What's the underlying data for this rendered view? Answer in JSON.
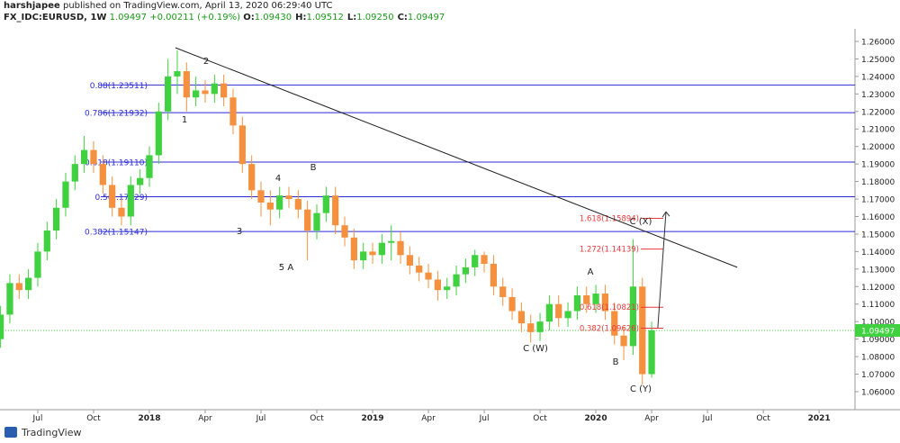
{
  "header": {
    "author": "harshjapee",
    "published": "published on TradingView.com, April 13, 2020 06:29:40 UTC",
    "symbol": "FX_IDC:EURUSD, 1W",
    "price": "1.09497",
    "change": "+0.00211 (+0.19%)",
    "ohlc": [
      {
        "key": "O:",
        "value": "1.09430"
      },
      {
        "key": "H:",
        "value": "1.09512"
      },
      {
        "key": "L:",
        "value": "1.09250"
      },
      {
        "key": "C:",
        "value": "1.09497"
      }
    ]
  },
  "chart_data": {
    "type": "candlestick",
    "x": [
      4,
      4.5,
      5,
      5.5,
      6,
      6.5,
      7,
      7.5,
      8,
      8.5,
      9,
      9.5,
      10,
      10.5,
      11,
      11.5,
      12,
      12.5,
      13,
      13.5,
      14,
      14.5,
      15,
      15.5,
      16,
      16.5,
      17,
      17.5,
      18,
      18.5,
      19,
      19.5,
      20,
      20.5,
      21,
      21.5,
      22,
      22.5,
      23,
      23.5,
      24,
      24.5,
      25,
      25.5,
      26,
      26.5,
      27,
      27.5,
      28,
      28.5,
      29,
      29.5,
      30,
      30.5,
      31,
      31.5,
      32,
      32.5,
      33,
      33.5,
      34,
      34.5,
      35,
      35.5,
      36,
      36.5,
      37,
      37.5,
      38,
      38.5,
      39
    ],
    "open": [
      1.09,
      1.104,
      1.122,
      1.118,
      1.125,
      1.14,
      1.152,
      1.165,
      1.18,
      1.19,
      1.198,
      1.19,
      1.178,
      1.165,
      1.16,
      1.178,
      1.182,
      1.195,
      1.22,
      1.24,
      1.243,
      1.228,
      1.232,
      1.23,
      1.236,
      1.228,
      1.212,
      1.19,
      1.175,
      1.168,
      1.164,
      1.172,
      1.17,
      1.164,
      1.152,
      1.162,
      1.172,
      1.155,
      1.148,
      1.135,
      1.14,
      1.138,
      1.145,
      1.146,
      1.138,
      1.132,
      1.128,
      1.124,
      1.118,
      1.12,
      1.127,
      1.131,
      1.138,
      1.133,
      1.12,
      1.114,
      1.106,
      1.099,
      1.094,
      1.1,
      1.11,
      1.102,
      1.106,
      1.115,
      1.11,
      1.116,
      1.106,
      1.092,
      1.086,
      1.12,
      1.07
    ],
    "high": [
      1.109,
      1.127,
      1.127,
      1.13,
      1.145,
      1.157,
      1.17,
      1.185,
      1.195,
      1.206,
      1.203,
      1.195,
      1.183,
      1.17,
      1.183,
      1.187,
      1.2,
      1.225,
      1.25,
      1.255,
      1.248,
      1.24,
      1.238,
      1.241,
      1.241,
      1.233,
      1.217,
      1.195,
      1.18,
      1.175,
      1.177,
      1.177,
      1.175,
      1.169,
      1.167,
      1.177,
      1.177,
      1.16,
      1.153,
      1.145,
      1.145,
      1.15,
      1.155,
      1.151,
      1.143,
      1.137,
      1.133,
      1.129,
      1.125,
      1.132,
      1.136,
      1.141,
      1.14,
      1.138,
      1.125,
      1.119,
      1.111,
      1.104,
      1.105,
      1.115,
      1.115,
      1.111,
      1.12,
      1.12,
      1.121,
      1.121,
      1.111,
      1.097,
      1.147,
      1.125,
      1.1
    ],
    "low": [
      1.085,
      1.099,
      1.113,
      1.113,
      1.12,
      1.135,
      1.147,
      1.16,
      1.175,
      1.185,
      1.185,
      1.173,
      1.16,
      1.155,
      1.155,
      1.173,
      1.177,
      1.19,
      1.215,
      1.23,
      1.22,
      1.223,
      1.225,
      1.225,
      1.223,
      1.207,
      1.185,
      1.17,
      1.16,
      1.155,
      1.159,
      1.165,
      1.159,
      1.135,
      1.147,
      1.157,
      1.15,
      1.143,
      1.13,
      1.13,
      1.133,
      1.133,
      1.135,
      1.133,
      1.127,
      1.123,
      1.119,
      1.112,
      1.113,
      1.115,
      1.122,
      1.126,
      1.128,
      1.115,
      1.109,
      1.101,
      1.094,
      1.088,
      1.089,
      1.095,
      1.097,
      1.097,
      1.101,
      1.105,
      1.105,
      1.101,
      1.087,
      1.078,
      1.081,
      1.064,
      1.068
    ],
    "close": [
      1.104,
      1.122,
      1.118,
      1.125,
      1.14,
      1.152,
      1.165,
      1.18,
      1.19,
      1.198,
      1.19,
      1.178,
      1.165,
      1.16,
      1.178,
      1.182,
      1.195,
      1.22,
      1.24,
      1.243,
      1.228,
      1.232,
      1.23,
      1.236,
      1.228,
      1.212,
      1.19,
      1.175,
      1.168,
      1.164,
      1.172,
      1.17,
      1.164,
      1.152,
      1.162,
      1.172,
      1.155,
      1.148,
      1.135,
      1.14,
      1.138,
      1.145,
      1.146,
      1.138,
      1.132,
      1.128,
      1.124,
      1.118,
      1.12,
      1.127,
      1.131,
      1.138,
      1.133,
      1.12,
      1.114,
      1.106,
      1.099,
      1.094,
      1.1,
      1.11,
      1.102,
      1.106,
      1.115,
      1.11,
      1.116,
      1.106,
      1.092,
      1.086,
      1.12,
      1.07,
      1.095
    ],
    "up_color": "#3fd13f",
    "down_color": "#f5913e",
    "xlim": [
      3.97,
      49.93
    ],
    "ylim": [
      1.0497,
      1.2672
    ],
    "xticks": [
      {
        "value": 6,
        "label": "Jul"
      },
      {
        "value": 9,
        "label": "Oct"
      },
      {
        "value": 12,
        "label": "2018"
      },
      {
        "value": 15,
        "label": "Apr"
      },
      {
        "value": 18,
        "label": "Jul"
      },
      {
        "value": 21,
        "label": "Oct"
      },
      {
        "value": 24,
        "label": "2019"
      },
      {
        "value": 27,
        "label": "Apr"
      },
      {
        "value": 30,
        "label": "Jul"
      },
      {
        "value": 33,
        "label": "Oct"
      },
      {
        "value": 36,
        "label": "2020"
      },
      {
        "value": 39,
        "label": "Apr"
      },
      {
        "value": 42,
        "label": "Jul"
      },
      {
        "value": 45,
        "label": "Oct"
      },
      {
        "value": 48,
        "label": "2021"
      }
    ],
    "yticks": [
      {
        "value": 1.06,
        "label": "1.06000"
      },
      {
        "value": 1.07,
        "label": "1.07000"
      },
      {
        "value": 1.08,
        "label": "1.08000"
      },
      {
        "value": 1.09,
        "label": "1.09000"
      },
      {
        "value": 1.1,
        "label": "1.10000"
      },
      {
        "value": 1.11,
        "label": "1.11000"
      },
      {
        "value": 1.12,
        "label": "1.12000"
      },
      {
        "value": 1.13,
        "label": "1.13000"
      },
      {
        "value": 1.14,
        "label": "1.14000"
      },
      {
        "value": 1.15,
        "label": "1.15000"
      },
      {
        "value": 1.16,
        "label": "1.16000"
      },
      {
        "value": 1.17,
        "label": "1.17000"
      },
      {
        "value": 1.18,
        "label": "1.18000"
      },
      {
        "value": 1.19,
        "label": "1.19000"
      },
      {
        "value": 1.2,
        "label": "1.20000"
      },
      {
        "value": 1.21,
        "label": "1.21000"
      },
      {
        "value": 1.22,
        "label": "1.22000"
      },
      {
        "value": 1.23,
        "label": "1.23000"
      },
      {
        "value": 1.24,
        "label": "1.24000"
      },
      {
        "value": 1.25,
        "label": "1.25000"
      },
      {
        "value": 1.26,
        "label": "1.26000"
      }
    ],
    "last_price": {
      "value": 1.09497,
      "label": "1.09497",
      "color": "#3fd13f"
    },
    "fib_retracement": {
      "color": "#2b2bd6",
      "levels": [
        {
          "label": "0.88(1.23511)",
          "value": 1.23511
        },
        {
          "label": "0.786(1.21932)",
          "value": 1.21932
        },
        {
          "label": "0.618(1.19110)",
          "value": 1.1911
        },
        {
          "label": "0.5(1.17129)",
          "value": 1.17129
        },
        {
          "label": "0.382(1.15147)",
          "value": 1.15147
        }
      ]
    },
    "fib_extension": {
      "color": "#e8383a",
      "levels": [
        {
          "label": "1.618(1.15894)",
          "value": 1.15894
        },
        {
          "label": "1.272(1.14139)",
          "value": 1.14139
        },
        {
          "label": "0.618(1.10821)",
          "value": 1.10821
        },
        {
          "label": "0.382(1.09626)",
          "value": 1.09626
        }
      ]
    },
    "trendline": {
      "x": [
        13.4,
        43.6
      ],
      "y": [
        1.2564,
        1.131
      ]
    },
    "arrow": {
      "x": [
        39.33,
        39.77
      ],
      "y": [
        1.0964,
        1.1627
      ]
    },
    "wave_labels": [
      "2",
      "1",
      "4",
      "3",
      "B",
      "5 A",
      "C (W)",
      "A",
      "C (X)",
      "B",
      "C (Y)"
    ]
  },
  "footer": {
    "brand": "TradingView"
  }
}
